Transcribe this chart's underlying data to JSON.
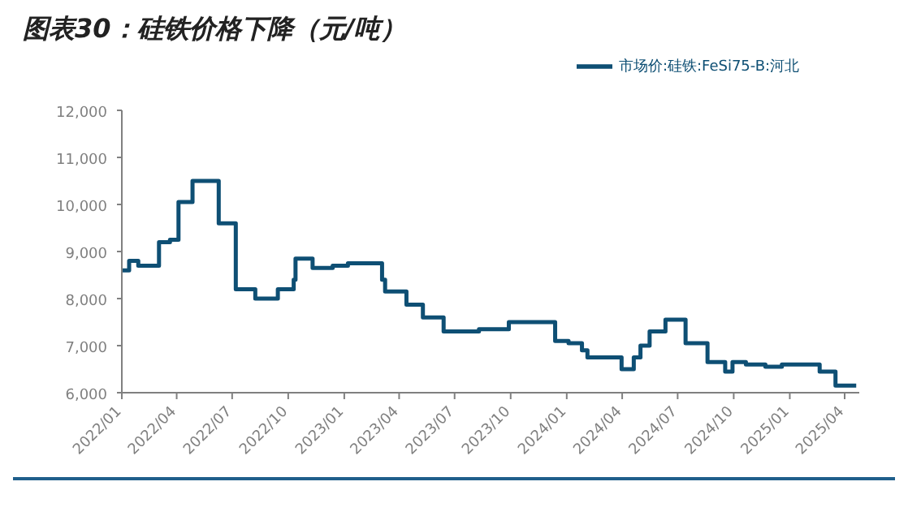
{
  "chart_data": {
    "type": "step",
    "title": "图表30：硅铁价格下降（元/吨）",
    "x": [
      "2022-01-01",
      "2022-01-13",
      "2022-01-28",
      "2022-03-03",
      "2022-03-21",
      "2022-04-04",
      "2022-04-27",
      "2022-06-09",
      "2022-07-07",
      "2022-08-08",
      "2022-09-14",
      "2022-10-10",
      "2022-10-13",
      "2022-11-10",
      "2022-12-13",
      "2023-01-07",
      "2023-03-04",
      "2023-03-09",
      "2023-04-13",
      "2023-05-10",
      "2023-06-13",
      "2023-08-10",
      "2023-09-28",
      "2023-12-13",
      "2024-01-04",
      "2024-01-26",
      "2024-02-04",
      "2024-03-31",
      "2024-04-20",
      "2024-05-01",
      "2024-05-16",
      "2024-06-11",
      "2024-07-14",
      "2024-08-19",
      "2024-09-17",
      "2024-09-29",
      "2024-10-21",
      "2024-11-22",
      "2024-12-19",
      "2025-02-19",
      "2025-03-17",
      "2025-04-20"
    ],
    "series": [
      {
        "name": "市场价:硅铁:FeSi75-B:河北",
        "color": "#0e4f74",
        "values": [
          8600,
          8800,
          8700,
          9200,
          9250,
          10050,
          10500,
          9600,
          8200,
          8000,
          8200,
          8400,
          8850,
          8650,
          8700,
          8750,
          8400,
          8150,
          7870,
          7600,
          7300,
          7350,
          7500,
          7100,
          7050,
          6900,
          6750,
          6500,
          6750,
          7000,
          7300,
          7550,
          7050,
          6650,
          6450,
          6650,
          6600,
          6550,
          6600,
          6450,
          6150,
          6150
        ]
      }
    ],
    "xlim": [
      "2022-01-01",
      "2025-04-25"
    ],
    "xticks": [
      {
        "value": "2022-01",
        "label": "2022/01"
      },
      {
        "value": "2022-04",
        "label": "2022/04"
      },
      {
        "value": "2022-07",
        "label": "2022/07"
      },
      {
        "value": "2022-10",
        "label": "2022/10"
      },
      {
        "value": "2023-01",
        "label": "2023/01"
      },
      {
        "value": "2023-04",
        "label": "2023/04"
      },
      {
        "value": "2023-07",
        "label": "2023/07"
      },
      {
        "value": "2023-10",
        "label": "2023/10"
      },
      {
        "value": "2024-01",
        "label": "2024/01"
      },
      {
        "value": "2024-04",
        "label": "2024/04"
      },
      {
        "value": "2024-07",
        "label": "2024/07"
      },
      {
        "value": "2024-10",
        "label": "2024/10"
      },
      {
        "value": "2025-01",
        "label": "2025/01"
      },
      {
        "value": "2025-04",
        "label": "2025/04"
      }
    ],
    "ylim": [
      6000,
      12000
    ],
    "yticks": [
      {
        "value": 6000,
        "label": "6,000"
      },
      {
        "value": 7000,
        "label": "7,000"
      },
      {
        "value": 8000,
        "label": "8,000"
      },
      {
        "value": 9000,
        "label": "9,000"
      },
      {
        "value": 10000,
        "label": "10,000"
      },
      {
        "value": 11000,
        "label": "11,000"
      },
      {
        "value": 12000,
        "label": "12,000"
      }
    ],
    "legend": "top",
    "grid": false,
    "marker": "none",
    "line_style": "solid"
  }
}
